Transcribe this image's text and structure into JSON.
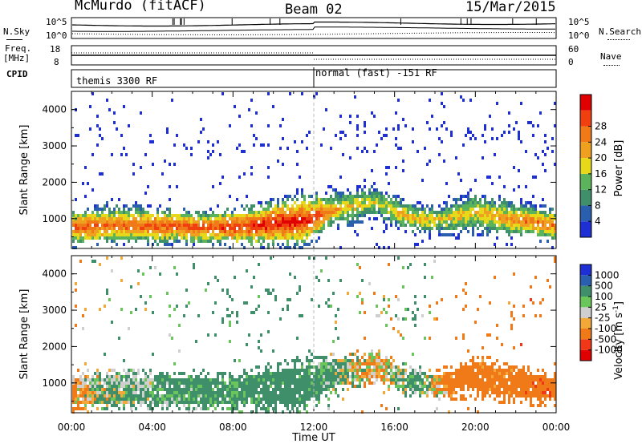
{
  "header": {
    "station": "McMurdo (fitACF)",
    "beam": "Beam 02",
    "date": "15/Mar/2015"
  },
  "noise_panel": {
    "left_label": "N.Sky",
    "right_label": "N.Search",
    "left_ticks": [
      "10^5",
      "10^0"
    ],
    "right_ticks": [
      "10^5",
      "10^0"
    ]
  },
  "freq_panel": {
    "left_label_1": "Freq.",
    "left_label_2": "[MHz]",
    "right_label": "Nave",
    "left_ticks": [
      "18",
      "8"
    ],
    "right_ticks": [
      "60",
      "0"
    ]
  },
  "cpid": {
    "label": "CPID",
    "seg1": "themis 3300 RF",
    "seg2": "normal (fast) -151 RF"
  },
  "x_axis": {
    "label": "Time UT",
    "ticks": [
      "00:00",
      "04:00",
      "08:00",
      "12:00",
      "16:00",
      "20:00",
      "00:00"
    ]
  },
  "colors": {
    "power": [
      "#1e2fd4",
      "#2a5fb0",
      "#3f8f6a",
      "#5bb35b",
      "#e8d81a",
      "#f0a020",
      "#f07a18",
      "#f04010",
      "#e00000"
    ],
    "velocity": [
      "#e00000",
      "#f03818",
      "#f07a18",
      "#f3a93a",
      "#cfcfcf",
      "#6ac65a",
      "#3f8f6a",
      "#2a5fb0",
      "#1e2fd4"
    ]
  },
  "chart_data": [
    {
      "type": "heatmap",
      "title": "Power",
      "ylabel": "Slant Range [km]",
      "xlabel": "",
      "x_ticks": [
        "00:00",
        "04:00",
        "08:00",
        "12:00",
        "16:00",
        "20:00",
        "00:00"
      ],
      "y_ticks": [
        1000,
        2000,
        3000,
        4000
      ],
      "ylim": [
        180,
        4500
      ],
      "xlim_hours": [
        0,
        24
      ],
      "colorbar": {
        "label": "Power [dB]",
        "ticks": [
          4,
          8,
          12,
          16,
          20,
          24,
          28
        ]
      },
      "band_profile": [
        {
          "t": 0.0,
          "center": 800,
          "width": 700,
          "peak": 26
        },
        {
          "t": 2.0,
          "center": 850,
          "width": 750,
          "peak": 24
        },
        {
          "t": 4.0,
          "center": 850,
          "width": 700,
          "peak": 26
        },
        {
          "t": 6.0,
          "center": 800,
          "width": 650,
          "peak": 26
        },
        {
          "t": 8.0,
          "center": 800,
          "width": 700,
          "peak": 28
        },
        {
          "t": 10.0,
          "center": 900,
          "width": 900,
          "peak": 30
        },
        {
          "t": 11.5,
          "center": 1000,
          "width": 1000,
          "peak": 30
        },
        {
          "t": 13.0,
          "center": 1300,
          "width": 700,
          "peak": 20
        },
        {
          "t": 15.0,
          "center": 1500,
          "width": 600,
          "peak": 16
        },
        {
          "t": 16.5,
          "center": 1100,
          "width": 600,
          "peak": 20
        },
        {
          "t": 18.0,
          "center": 1000,
          "width": 500,
          "peak": 18
        },
        {
          "t": 20.0,
          "center": 1200,
          "width": 800,
          "peak": 18
        },
        {
          "t": 22.0,
          "center": 1000,
          "width": 700,
          "peak": 22
        },
        {
          "t": 24.0,
          "center": 850,
          "width": 600,
          "peak": 24
        }
      ]
    },
    {
      "type": "heatmap",
      "title": "Velocity",
      "ylabel": "Slant Range [km]",
      "xlabel": "Time UT",
      "x_ticks": [
        "00:00",
        "04:00",
        "08:00",
        "12:00",
        "16:00",
        "20:00",
        "00:00"
      ],
      "y_ticks": [
        1000,
        2000,
        3000,
        4000
      ],
      "ylim": [
        180,
        4500
      ],
      "xlim_hours": [
        0,
        24
      ],
      "colorbar": {
        "label": "Velocity [m s^-1]",
        "ticks": [
          1000,
          500,
          100,
          25,
          -25,
          -100,
          -500,
          -1000
        ]
      },
      "velocity_profile": [
        {
          "t": 0.0,
          "v": -200
        },
        {
          "t": 1.0,
          "v": 50
        },
        {
          "t": 3.0,
          "v": 150
        },
        {
          "t": 6.0,
          "v": 200
        },
        {
          "t": 9.0,
          "v": 250
        },
        {
          "t": 11.0,
          "v": 300
        },
        {
          "t": 13.0,
          "v": 150
        },
        {
          "t": 15.0,
          "v": -150
        },
        {
          "t": 17.0,
          "v": 200
        },
        {
          "t": 19.0,
          "v": -300
        },
        {
          "t": 21.0,
          "v": -250
        },
        {
          "t": 23.0,
          "v": -350
        },
        {
          "t": 24.0,
          "v": -300
        }
      ]
    }
  ]
}
